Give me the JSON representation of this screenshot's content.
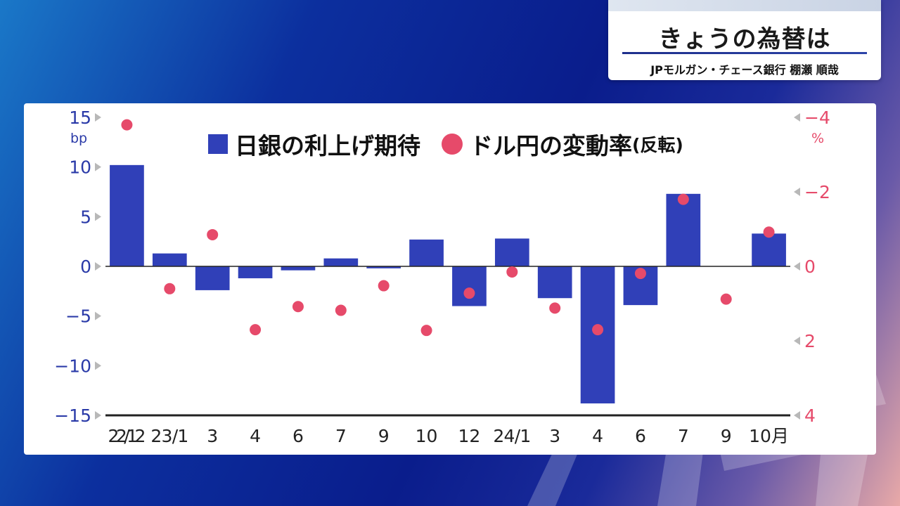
{
  "caption": {
    "title": "きょうの為替は",
    "person": "JPモルガン・チェース銀行 棚瀬 順哉"
  },
  "chart_data": {
    "type": "bar+scatter",
    "legend_placement": "top",
    "categories": [
      "22/12",
      "23/1",
      "3",
      "4",
      "6",
      "7",
      "9",
      "10",
      "12",
      "24/1",
      "3",
      "4",
      "6",
      "7",
      "9",
      "10月"
    ],
    "series": [
      {
        "name": "日銀の利上げ期待",
        "type": "bar",
        "axis": "left",
        "color": "#3040b8",
        "values": [
          10.2,
          1.3,
          -2.4,
          -1.2,
          -0.4,
          0.8,
          -0.2,
          2.7,
          -4.0,
          2.8,
          -3.2,
          -13.8,
          -3.9,
          7.3,
          0,
          3.3
        ]
      },
      {
        "name": "ドル円の変動率",
        "name_suffix": "(反転)",
        "type": "scatter",
        "axis": "right",
        "color": "#e64a6a",
        "values": [
          -3.8,
          0.6,
          -0.85,
          1.7,
          1.08,
          1.18,
          0.52,
          1.72,
          0.72,
          0.15,
          1.12,
          1.7,
          0.19,
          -1.8,
          0.88,
          -0.92
        ]
      }
    ],
    "y_left": {
      "unit": "bp",
      "min": -15,
      "max": 15,
      "ticks": [
        15,
        10,
        5,
        0,
        -5,
        -10,
        -15
      ],
      "tick_labels": [
        "15",
        "10",
        "5",
        "0",
        "−5",
        "−10",
        "−15"
      ],
      "color": "#2a3aa8"
    },
    "y_right": {
      "unit": "%",
      "min": -4,
      "max": 4,
      "inverted": true,
      "ticks": [
        -4,
        -2,
        0,
        2,
        4
      ],
      "tick_labels": [
        "−4",
        "−2",
        "0",
        "2",
        "4"
      ],
      "color": "#e64a6a"
    },
    "grid": false
  }
}
